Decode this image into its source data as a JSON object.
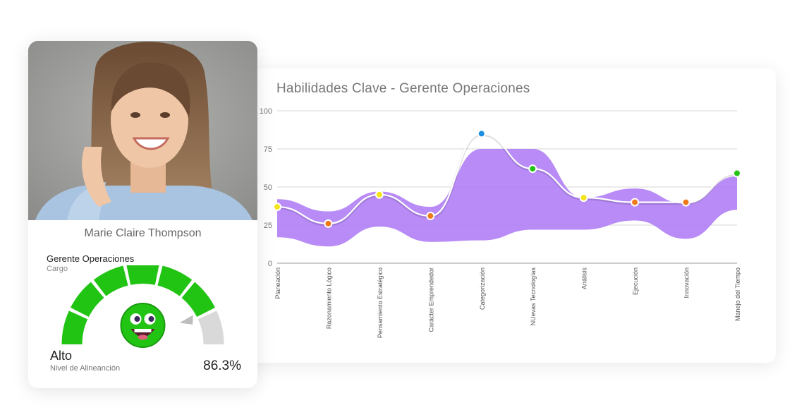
{
  "profile": {
    "name": "Marie Claire Thompson",
    "role": "Gerente Operaciones",
    "role_label": "Cargo",
    "level": "Alto",
    "level_label": "Nivel de Alineanción",
    "score_text": "86.3%",
    "score_fraction": 0.863,
    "gauge_color": "#22c414"
  },
  "chart_data": {
    "type": "line",
    "title": "Habilidades Clave - Gerente Operaciones",
    "categories": [
      "Planeación",
      "Razonamiento Lógico",
      "Pensamiento Estratégico",
      "Carácter Emprendedor",
      "Categorización",
      "NUevas Tecnologías",
      "Análisis",
      "Ejecución",
      "Innovación",
      "Manejo del Tiempo"
    ],
    "series": [
      {
        "values": [
          37,
          26,
          45,
          31,
          85,
          62,
          43,
          40,
          40,
          59
        ],
        "color": "#ffffff",
        "point_colors": [
          "#f5e41c",
          "#f07a1a",
          "#f5e41c",
          "#f07a1a",
          "#1a8fe0",
          "#22c414",
          "#f5e41c",
          "#f07a1a",
          "#f07a1a",
          "#22c414"
        ]
      }
    ],
    "band": {
      "upper": [
        42,
        34,
        47,
        37,
        75,
        75,
        43,
        49,
        39,
        57
      ],
      "lower": [
        17,
        11,
        24,
        14,
        15,
        22,
        22,
        28,
        16,
        35
      ],
      "color": "#b07ef5"
    },
    "yticks": [
      "0",
      "25",
      "50",
      "75",
      "100"
    ],
    "ylim": [
      0,
      100
    ],
    "grid": true
  }
}
